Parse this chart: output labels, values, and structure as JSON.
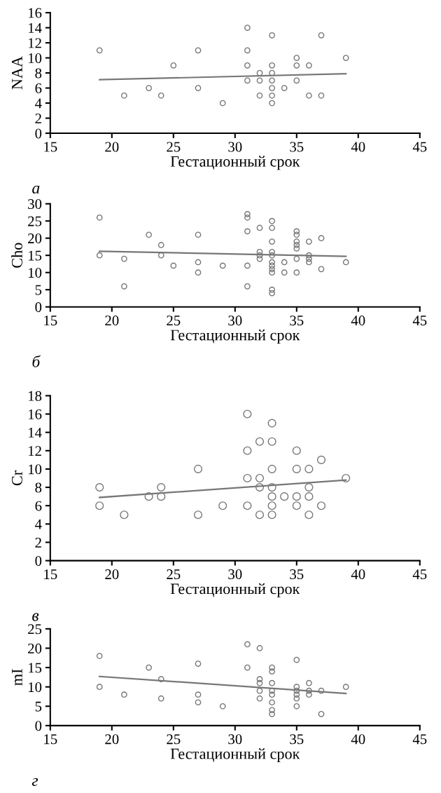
{
  "chart_data": [
    {
      "type": "scatter",
      "xlabel": "Гестационный срок",
      "ylabel": "NAA",
      "xlim": [
        15,
        45
      ],
      "xticks": [
        15,
        20,
        25,
        30,
        35,
        40,
        45
      ],
      "ylim": [
        0,
        16
      ],
      "yticks": [
        0,
        2,
        4,
        6,
        8,
        10,
        12,
        14,
        16
      ],
      "annotations": [
        "а"
      ],
      "series": [
        {
          "marker": "circle",
          "color": "#777777",
          "x": [
            19,
            21,
            23,
            24,
            25,
            27,
            27,
            29,
            31,
            31,
            31,
            31,
            32,
            32,
            32,
            33,
            33,
            33,
            33,
            33,
            33,
            33,
            34,
            35,
            35,
            35,
            36,
            36,
            37,
            37,
            39
          ],
          "values": [
            11,
            5,
            6,
            5,
            9,
            11,
            6,
            4,
            14,
            11,
            9,
            7,
            8,
            7,
            5,
            13,
            9,
            8,
            7,
            6,
            5,
            4,
            6,
            10,
            9,
            7,
            9,
            5,
            13,
            5,
            10
          ]
        },
        {
          "type": "line",
          "color": "#777777",
          "x": [
            19,
            39
          ],
          "values": [
            7.1,
            7.9
          ]
        }
      ]
    },
    {
      "type": "scatter",
      "xlabel": "Гестационный срок",
      "ylabel": "Cho",
      "xlim": [
        15,
        45
      ],
      "xticks": [
        15,
        20,
        25,
        30,
        35,
        40,
        45
      ],
      "ylim": [
        0,
        30
      ],
      "yticks": [
        0,
        5,
        10,
        15,
        20,
        25,
        30
      ],
      "annotations": [
        "б"
      ],
      "series": [
        {
          "marker": "circle",
          "color": "#777777",
          "x": [
            19,
            19,
            21,
            21,
            23,
            24,
            24,
            25,
            27,
            27,
            27,
            29,
            31,
            31,
            31,
            31,
            31,
            32,
            32,
            32,
            32,
            33,
            33,
            33,
            33,
            33,
            33,
            33,
            33,
            33,
            33,
            33,
            34,
            34,
            35,
            35,
            35,
            35,
            35,
            35,
            35,
            36,
            36,
            36,
            36,
            37,
            37,
            39
          ],
          "values": [
            26,
            15,
            14,
            6,
            21,
            18,
            15,
            12,
            21,
            13,
            10,
            12,
            27,
            26,
            22,
            12,
            6,
            23,
            16,
            15,
            14,
            25,
            23,
            19,
            16,
            15,
            13,
            12,
            11,
            10,
            5,
            4,
            13,
            10,
            22,
            21,
            19,
            18,
            17,
            14,
            10,
            19,
            15,
            14,
            13,
            20,
            11,
            13
          ]
        },
        {
          "type": "line",
          "color": "#777777",
          "x": [
            19,
            39
          ],
          "values": [
            16.2,
            14.7
          ]
        }
      ]
    },
    {
      "type": "scatter",
      "xlabel": "Гестационный срок",
      "ylabel": "Cr",
      "xlim": [
        15,
        45
      ],
      "xticks": [
        15,
        20,
        25,
        30,
        35,
        40,
        45
      ],
      "ylim": [
        0,
        18
      ],
      "yticks": [
        0,
        2,
        4,
        6,
        8,
        10,
        12,
        14,
        16,
        18
      ],
      "annotations": [
        "в"
      ],
      "series": [
        {
          "marker": "circle",
          "color": "#777777",
          "x": [
            19,
            19,
            21,
            23,
            24,
            24,
            27,
            27,
            29,
            31,
            31,
            31,
            31,
            32,
            32,
            32,
            32,
            33,
            33,
            33,
            33,
            33,
            33,
            33,
            34,
            35,
            35,
            35,
            35,
            36,
            36,
            36,
            36,
            37,
            37,
            39
          ],
          "values": [
            8,
            6,
            5,
            7,
            8,
            7,
            10,
            5,
            6,
            16,
            12,
            9,
            6,
            13,
            9,
            8,
            5,
            15,
            13,
            10,
            8,
            7,
            6,
            5,
            7,
            12,
            10,
            7,
            6,
            10,
            8,
            7,
            5,
            11,
            6,
            9
          ]
        },
        {
          "type": "line",
          "color": "#777777",
          "x": [
            19,
            39
          ],
          "values": [
            6.9,
            8.8
          ]
        }
      ]
    },
    {
      "type": "scatter",
      "xlabel": "Гестационный срок",
      "ylabel": "mI",
      "xlim": [
        15,
        45
      ],
      "xticks": [
        15,
        20,
        25,
        30,
        35,
        40,
        45
      ],
      "ylim": [
        0,
        25
      ],
      "yticks": [
        0,
        5,
        10,
        15,
        20,
        25
      ],
      "annotations": [
        "г"
      ],
      "series": [
        {
          "marker": "circle",
          "color": "#777777",
          "x": [
            19,
            19,
            21,
            23,
            24,
            24,
            27,
            27,
            27,
            29,
            31,
            31,
            32,
            32,
            32,
            32,
            32,
            33,
            33,
            33,
            33,
            33,
            33,
            33,
            33,
            35,
            35,
            35,
            35,
            35,
            35,
            36,
            36,
            36,
            37,
            37,
            39
          ],
          "values": [
            18,
            10,
            8,
            15,
            12,
            7,
            16,
            8,
            6,
            5,
            21,
            15,
            20,
            12,
            11,
            9,
            7,
            15,
            14,
            11,
            9,
            8,
            6,
            4,
            3,
            17,
            10,
            9,
            8,
            7,
            5,
            11,
            9,
            8,
            9,
            3,
            10
          ]
        },
        {
          "type": "line",
          "color": "#777777",
          "x": [
            19,
            39
          ],
          "values": [
            12.7,
            8.3
          ]
        }
      ]
    }
  ]
}
